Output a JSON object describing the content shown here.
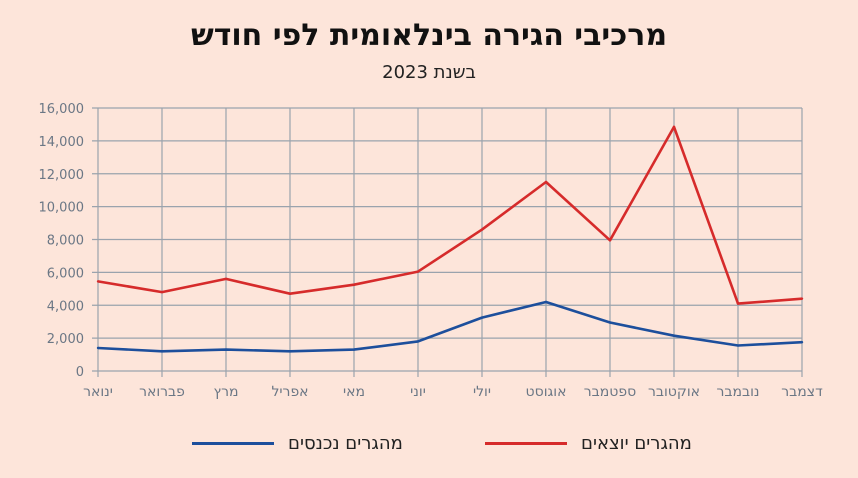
{
  "title": "מרכיבי הגירה בינלאומית לפי חודש",
  "subtitle": "בשנת 2023",
  "colors": {
    "background": "#fde5da",
    "outgoing": "#d62b2b",
    "incoming": "#1d4f9c",
    "grid": "#9aa3ad",
    "axis_text": "#6b7785"
  },
  "chart_data": {
    "type": "line",
    "title": "מרכיבי הגירה בינלאומית לפי חודש",
    "subtitle": "בשנת 2023",
    "categories": [
      "ינואר",
      "פברואר",
      "מרץ",
      "אפריל",
      "מאי",
      "יוני",
      "יולי",
      "אוגוסט",
      "ספטמבר",
      "אוקטובר",
      "נובמבר",
      "דצמבר"
    ],
    "y_ticks": [
      "0",
      "2,000",
      "4,000",
      "6,000",
      "8,000",
      "10,000",
      "12,000",
      "14,000",
      "16,000"
    ],
    "ylim": [
      0,
      16000
    ],
    "grid": true,
    "legend_position": "bottom",
    "series": [
      {
        "name": "מהגרים יוצאים",
        "color": "#d62b2b",
        "values": [
          5450,
          4800,
          5600,
          4700,
          5250,
          6050,
          8600,
          11500,
          7950,
          14850,
          4100,
          4400
        ]
      },
      {
        "name": "מהגרים נכנסים",
        "color": "#1d4f9c",
        "values": [
          1400,
          1200,
          1300,
          1200,
          1300,
          1800,
          3250,
          4200,
          2950,
          2150,
          1550,
          1750
        ]
      }
    ]
  }
}
